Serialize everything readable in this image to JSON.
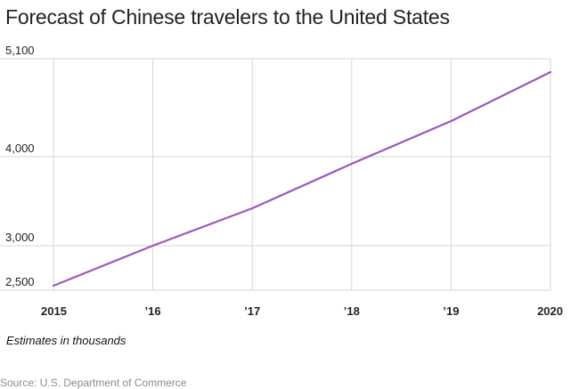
{
  "chart_data": {
    "type": "line",
    "title": "Forecast of Chinese travelers to the United States",
    "x": [
      "2015",
      "’16",
      "’17",
      "’18",
      "’19",
      "2020"
    ],
    "series": [
      {
        "values": [
          2550,
          3000,
          3420,
          3920,
          4400,
          4950
        ]
      }
    ],
    "ylim": [
      2500,
      5100
    ],
    "y_ticks": [
      2500,
      3000,
      4000,
      5100
    ],
    "y_tick_labels": [
      "2,500",
      "3,000",
      "4,000",
      "5,100"
    ],
    "grid": true,
    "line_color": "#9b59b6",
    "note": "Estimates in thousands",
    "source": "Source: U.S. Department of Commerce"
  }
}
